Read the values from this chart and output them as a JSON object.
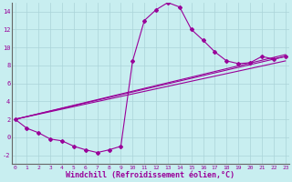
{
  "title": "",
  "xlabel": "Windchill (Refroidissement éolien,°C)",
  "ylabel": "",
  "bg_color": "#c8eef0",
  "line_color": "#990099",
  "marker": "D",
  "markersize": 2,
  "linewidth": 0.8,
  "xlim": [
    -0.3,
    23.3
  ],
  "ylim": [
    -3,
    15
  ],
  "yticks": [
    -2,
    0,
    2,
    4,
    6,
    8,
    10,
    12,
    14
  ],
  "xticks": [
    0,
    1,
    2,
    3,
    4,
    5,
    6,
    7,
    8,
    9,
    10,
    11,
    12,
    13,
    14,
    15,
    16,
    17,
    18,
    19,
    20,
    21,
    22,
    23
  ],
  "curve1_x": [
    0,
    1,
    2,
    3,
    4,
    5,
    6,
    7,
    8,
    9,
    10,
    11,
    12,
    13,
    14,
    15,
    16,
    17,
    18,
    19,
    20,
    21,
    22,
    23
  ],
  "curve1_y": [
    2.0,
    1.0,
    0.5,
    -0.2,
    -0.4,
    -1.0,
    -1.4,
    -1.7,
    -1.4,
    -1.0,
    8.5,
    13.0,
    14.2,
    15.0,
    14.5,
    12.0,
    10.8,
    9.5,
    8.5,
    8.2,
    8.3,
    9.0,
    8.7,
    9.0
  ],
  "curve2_x": [
    0,
    23
  ],
  "curve2_y": [
    2.0,
    9.0
  ],
  "curve3_x": [
    0,
    23
  ],
  "curve3_y": [
    2.0,
    8.5
  ],
  "curve4_x": [
    0,
    23
  ],
  "curve4_y": [
    2.0,
    9.2
  ],
  "grid_color": "#aad4d8",
  "tick_fontsize": 4.5,
  "xlabel_fontsize": 6.0
}
